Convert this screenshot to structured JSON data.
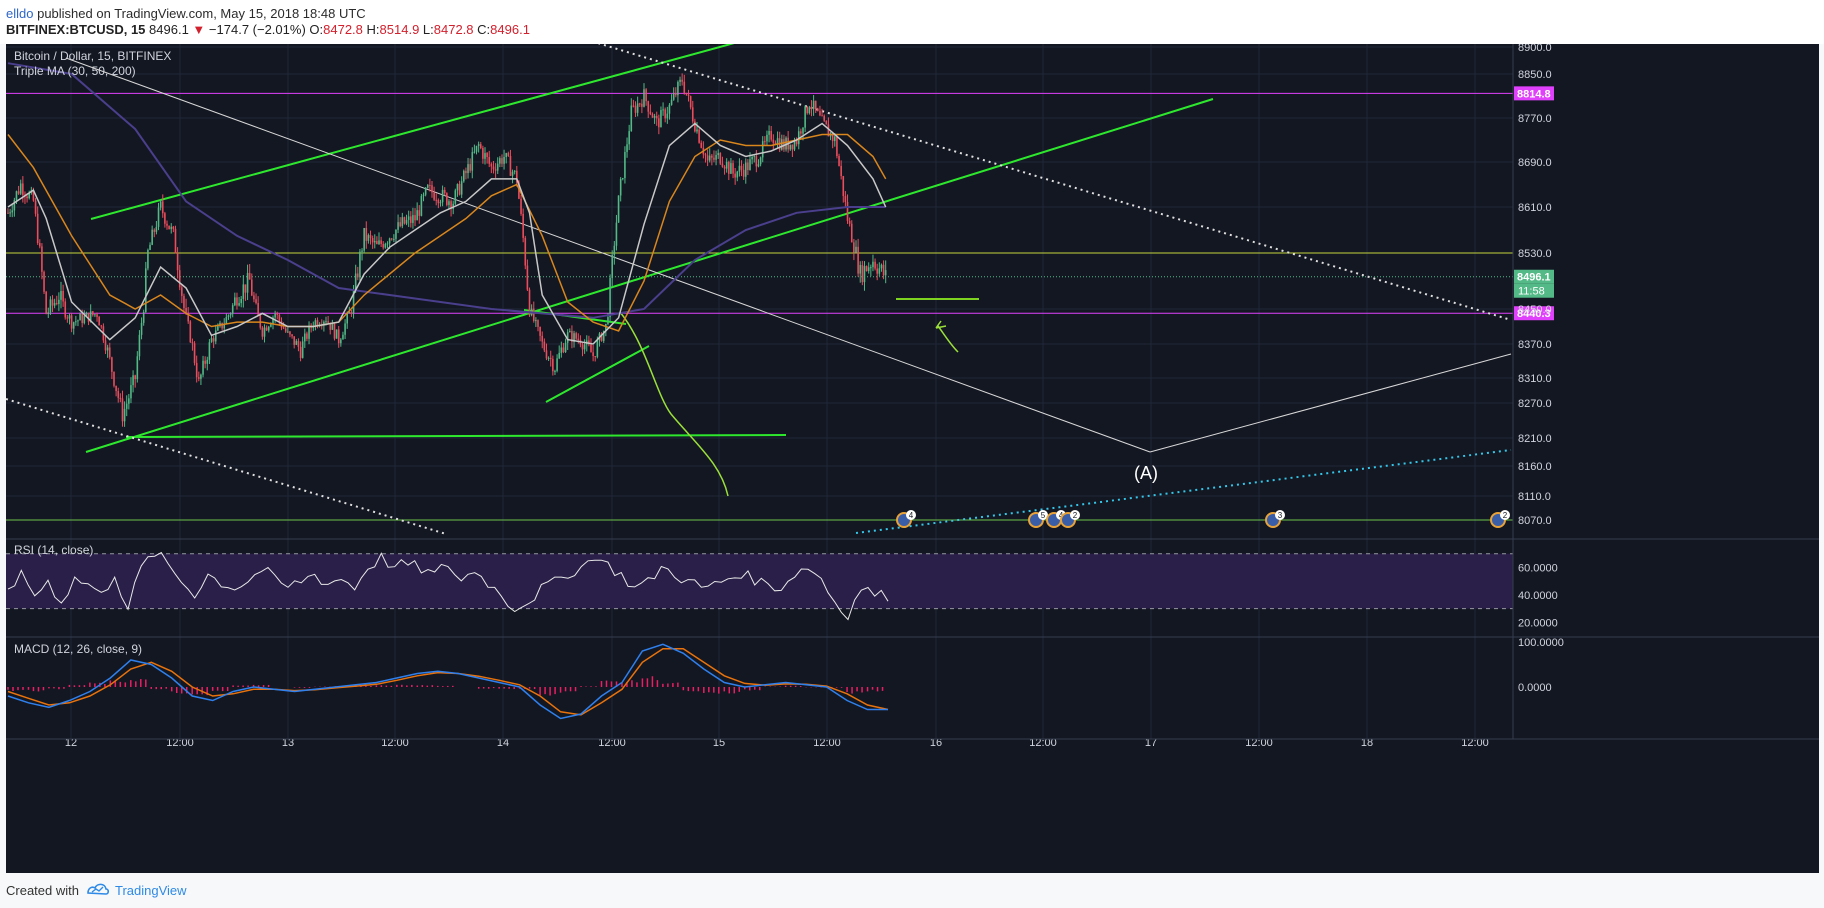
{
  "header": {
    "author": "elldo",
    "published": "published on TradingView.com, May 15, 2018 18:48 UTC",
    "symbol": "BITFINEX:BTCUSD, 15",
    "last": "8496.1",
    "change_arrow": "▼",
    "change": "−174.7 (−2.01%)",
    "o_label": "O:",
    "o": "8472.8",
    "h_label": "H:",
    "h": "8514.9",
    "l_label": "L:",
    "l": "8472.8",
    "c_label": "C:",
    "c": "8496.1"
  },
  "chart": {
    "title": "Bitcoin / Dollar, 15, BITFINEX",
    "indicator": "Triple MA (30, 50, 200)",
    "rsi_label": "RSI (14, close)",
    "macd_label": "MACD (12, 26, close, 9)",
    "wave_label": "(A)",
    "countdown": "11:58"
  },
  "colors": {
    "background": "#131722",
    "candle_up": "#53b987",
    "candle_down": "#eb4d5c",
    "trend_green": "#2ee82e",
    "magenta": "#e040fb",
    "ma30": "#c8c8c8",
    "ma50": "#d9861c",
    "ma200": "#4a3f8c",
    "rsi_band": "#2a1f48",
    "macd_line": "#2f80ed",
    "signal_line": "#e8720c",
    "hist": "#e91e63"
  },
  "footer": {
    "created": "Created with",
    "brand": "TradingView"
  },
  "chart_data": [
    {
      "type": "candlestick",
      "title": "Bitcoin / Dollar, 15, BITFINEX",
      "y_ticks": [
        "8900.0",
        "8850.0",
        "8770.0",
        "8690.0",
        "8610.0",
        "8530.0",
        "8450.0",
        "8370.0",
        "8310.0",
        "8270.0",
        "8210.0",
        "8160.0",
        "8110.0",
        "8070.0"
      ],
      "x_ticks": [
        "12",
        "12:00",
        "13",
        "12:00",
        "14",
        "12:00",
        "15",
        "12:00",
        "16",
        "12:00",
        "17",
        "12:00",
        "18",
        "12:00"
      ],
      "price_levels": [
        {
          "label": "8814.8",
          "value": 8814.8,
          "color": "#e040fb"
        },
        {
          "label": "8496.1",
          "value": 8496.1,
          "color": "#53b987"
        },
        {
          "label": "8440.3",
          "value": 8440.3,
          "color": "#e040fb"
        }
      ],
      "horizontal_lines": [
        8530,
        8070
      ],
      "close_path": [
        [
          0,
          8600
        ],
        [
          6,
          8650
        ],
        [
          12,
          8620
        ],
        [
          18,
          8440
        ],
        [
          24,
          8470
        ],
        [
          30,
          8420
        ],
        [
          36,
          8430
        ],
        [
          42,
          8440
        ],
        [
          48,
          8340
        ],
        [
          54,
          8250
        ],
        [
          60,
          8310
        ],
        [
          66,
          8530
        ],
        [
          72,
          8610
        ],
        [
          78,
          8560
        ],
        [
          84,
          8430
        ],
        [
          90,
          8300
        ],
        [
          96,
          8380
        ],
        [
          102,
          8420
        ],
        [
          108,
          8470
        ],
        [
          114,
          8490
        ],
        [
          120,
          8400
        ],
        [
          126,
          8440
        ],
        [
          132,
          8390
        ],
        [
          138,
          8360
        ],
        [
          144,
          8420
        ],
        [
          150,
          8430
        ],
        [
          156,
          8380
        ],
        [
          162,
          8450
        ],
        [
          168,
          8560
        ],
        [
          174,
          8540
        ],
        [
          180,
          8560
        ],
        [
          186,
          8580
        ],
        [
          192,
          8590
        ],
        [
          198,
          8640
        ],
        [
          204,
          8630
        ],
        [
          210,
          8620
        ],
        [
          216,
          8670
        ],
        [
          222,
          8720
        ],
        [
          228,
          8680
        ],
        [
          234,
          8700
        ],
        [
          240,
          8660
        ],
        [
          246,
          8450
        ],
        [
          252,
          8370
        ],
        [
          258,
          8330
        ],
        [
          264,
          8390
        ],
        [
          270,
          8380
        ],
        [
          276,
          8350
        ],
        [
          282,
          8410
        ],
        [
          288,
          8620
        ],
        [
          294,
          8780
        ],
        [
          300,
          8810
        ],
        [
          306,
          8760
        ],
        [
          312,
          8790
        ],
        [
          318,
          8840
        ],
        [
          324,
          8760
        ],
        [
          330,
          8690
        ],
        [
          336,
          8700
        ],
        [
          342,
          8670
        ],
        [
          348,
          8680
        ],
        [
          354,
          8700
        ],
        [
          360,
          8740
        ],
        [
          366,
          8720
        ],
        [
          372,
          8730
        ],
        [
          378,
          8800
        ],
        [
          384,
          8760
        ],
        [
          390,
          8730
        ],
        [
          396,
          8590
        ],
        [
          402,
          8500
        ],
        [
          408,
          8520
        ],
        [
          414,
          8496
        ]
      ],
      "ma30_path": [
        [
          0,
          8610
        ],
        [
          12,
          8640
        ],
        [
          18,
          8590
        ],
        [
          30,
          8460
        ],
        [
          48,
          8380
        ],
        [
          60,
          8430
        ],
        [
          72,
          8510
        ],
        [
          84,
          8480
        ],
        [
          96,
          8390
        ],
        [
          108,
          8410
        ],
        [
          120,
          8440
        ],
        [
          132,
          8410
        ],
        [
          144,
          8410
        ],
        [
          156,
          8420
        ],
        [
          168,
          8500
        ],
        [
          180,
          8540
        ],
        [
          192,
          8570
        ],
        [
          204,
          8600
        ],
        [
          216,
          8620
        ],
        [
          228,
          8660
        ],
        [
          240,
          8660
        ],
        [
          246,
          8600
        ],
        [
          252,
          8470
        ],
        [
          264,
          8380
        ],
        [
          276,
          8370
        ],
        [
          288,
          8430
        ],
        [
          300,
          8580
        ],
        [
          312,
          8720
        ],
        [
          324,
          8760
        ],
        [
          336,
          8720
        ],
        [
          348,
          8700
        ],
        [
          360,
          8710
        ],
        [
          372,
          8730
        ],
        [
          384,
          8760
        ],
        [
          396,
          8720
        ],
        [
          408,
          8660
        ],
        [
          414,
          8610
        ]
      ],
      "ma50_path": [
        [
          0,
          8740
        ],
        [
          12,
          8680
        ],
        [
          30,
          8560
        ],
        [
          48,
          8470
        ],
        [
          60,
          8450
        ],
        [
          72,
          8470
        ],
        [
          84,
          8440
        ],
        [
          96,
          8410
        ],
        [
          108,
          8420
        ],
        [
          120,
          8420
        ],
        [
          132,
          8410
        ],
        [
          144,
          8410
        ],
        [
          156,
          8420
        ],
        [
          168,
          8470
        ],
        [
          180,
          8500
        ],
        [
          192,
          8530
        ],
        [
          204,
          8560
        ],
        [
          216,
          8590
        ],
        [
          228,
          8630
        ],
        [
          240,
          8650
        ],
        [
          252,
          8560
        ],
        [
          264,
          8460
        ],
        [
          276,
          8420
        ],
        [
          288,
          8400
        ],
        [
          300,
          8490
        ],
        [
          312,
          8620
        ],
        [
          324,
          8700
        ],
        [
          336,
          8730
        ],
        [
          348,
          8720
        ],
        [
          360,
          8720
        ],
        [
          372,
          8730
        ],
        [
          384,
          8740
        ],
        [
          396,
          8740
        ],
        [
          408,
          8700
        ],
        [
          414,
          8660
        ]
      ],
      "ma200_path": [
        [
          0,
          8870
        ],
        [
          30,
          8850
        ],
        [
          60,
          8750
        ],
        [
          84,
          8620
        ],
        [
          108,
          8560
        ],
        [
          132,
          8520
        ],
        [
          156,
          8480
        ],
        [
          180,
          8470
        ],
        [
          204,
          8460
        ],
        [
          228,
          8450
        ],
        [
          252,
          8440
        ],
        [
          276,
          8430
        ],
        [
          300,
          8450
        ],
        [
          324,
          8520
        ],
        [
          348,
          8570
        ],
        [
          372,
          8600
        ],
        [
          396,
          8610
        ],
        [
          414,
          8610
        ]
      ]
    },
    {
      "type": "line",
      "title": "RSI (14, close)",
      "y_ticks": [
        "60.0000",
        "40.0000",
        "20.0000"
      ],
      "bands": [
        70,
        30
      ],
      "values": [
        45,
        55,
        40,
        50,
        35,
        52,
        48,
        40,
        55,
        30,
        60,
        70,
        62,
        50,
        40,
        55,
        48,
        45,
        50,
        58,
        52,
        45,
        50,
        55,
        48,
        52,
        45,
        60,
        68,
        60,
        62,
        58,
        55,
        62,
        50,
        58,
        48,
        40,
        30,
        35,
        45,
        50,
        55,
        60,
        68,
        62,
        55,
        45,
        50,
        60,
        55,
        50,
        45,
        48,
        52,
        55,
        50,
        48,
        45,
        55,
        60,
        52,
        35,
        25,
        45,
        40,
        38
      ]
    },
    {
      "type": "line",
      "title": "MACD (12, 26, close, 9)",
      "y_ticks": [
        "100.0000",
        "0.0000"
      ],
      "series": [
        {
          "name": "MACD",
          "values": [
            -20,
            -35,
            -45,
            -30,
            -10,
            20,
            60,
            50,
            20,
            -20,
            -30,
            -10,
            0,
            -5,
            -10,
            -5,
            0,
            5,
            10,
            20,
            30,
            35,
            30,
            20,
            10,
            0,
            -40,
            -70,
            -60,
            -20,
            10,
            80,
            95,
            75,
            40,
            10,
            0,
            5,
            10,
            5,
            0,
            -30,
            -50,
            -50
          ]
        },
        {
          "name": "Signal",
          "values": [
            -10,
            -25,
            -40,
            -35,
            -20,
            5,
            40,
            55,
            35,
            0,
            -20,
            -15,
            -5,
            -5,
            -8,
            -6,
            -2,
            2,
            6,
            15,
            25,
            32,
            30,
            24,
            15,
            5,
            -20,
            -55,
            -62,
            -35,
            -5,
            55,
            85,
            85,
            55,
            25,
            8,
            4,
            7,
            6,
            2,
            -15,
            -40,
            -50
          ]
        }
      ]
    }
  ]
}
